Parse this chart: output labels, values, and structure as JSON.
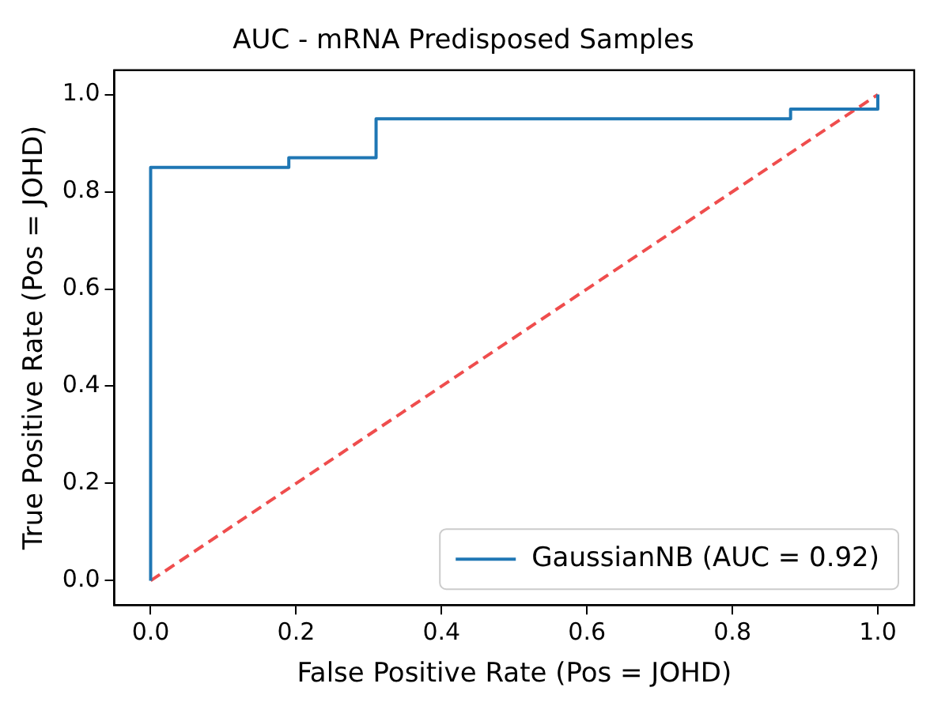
{
  "chart_data": {
    "type": "step",
    "title": "AUC - mRNA Predisposed Samples",
    "xlabel": "False Positive Rate (Pos = JOHD)",
    "ylabel": "True Positive Rate (Pos = JOHD)",
    "series": [
      {
        "name": "GaussianNB (AUC = 0.92)",
        "color": "#1f77b4",
        "x": [
          0,
          0,
          0.19,
          0.31,
          0.88,
          1
        ],
        "values": [
          0,
          0.85,
          0.87,
          0.95,
          0.97,
          1
        ]
      },
      {
        "type": "line",
        "color": "#ef4d4d",
        "line_style": "dashed",
        "x": [
          0,
          1
        ],
        "values": [
          0,
          1
        ]
      }
    ],
    "xlim": [
      -0.05,
      1.05
    ],
    "xticks": [
      {
        "value": 0,
        "label": "0.0"
      },
      0.2,
      0.4,
      0.6,
      0.8,
      {
        "value": 1,
        "label": "1.0"
      }
    ],
    "ylim": [
      -0.05,
      1.05
    ],
    "yticks": [
      {
        "value": 0,
        "label": "0.0"
      },
      0.2,
      0.4,
      0.6,
      0.8,
      {
        "value": 1,
        "label": "1.0"
      }
    ],
    "grid": false,
    "legend": "bottom right"
  }
}
